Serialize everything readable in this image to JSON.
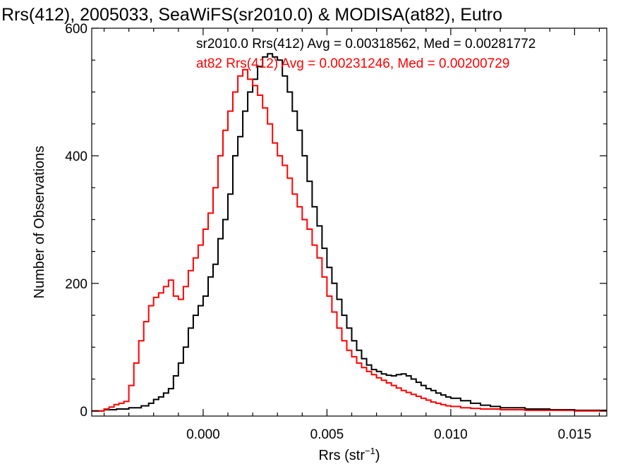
{
  "chart_data": {
    "type": "histogram-step",
    "title": "Rrs(412), 2005033, SeaWiFS(sr2010.0) & MODISA(at82), Eutro",
    "xlabel": {
      "base": "Rrs (str",
      "sup": "−1",
      "end": ")"
    },
    "ylabel": "Number of Observations",
    "xlim": [
      -0.0045,
      0.0163
    ],
    "ylim": [
      -8,
      600
    ],
    "xticks": [
      0.0,
      0.005,
      0.01,
      0.015
    ],
    "xtick_labels": [
      "0.000",
      "0.005",
      "0.010",
      "0.015"
    ],
    "yticks": [
      0,
      200,
      400,
      600
    ],
    "ytick_labels": [
      "0",
      "200",
      "400",
      "600"
    ],
    "grid": false,
    "legend_position": "top",
    "series": [
      {
        "name": "sr2010.0",
        "color": "#000000",
        "legend_text": "sr2010.0 Rrs(412) Avg = 0.00318562, Med = 0.00281772",
        "points": [
          [
            -0.0045,
            0
          ],
          [
            -0.004,
            2
          ],
          [
            -0.0035,
            3
          ],
          [
            -0.003,
            5
          ],
          [
            -0.0025,
            8
          ],
          [
            -0.0022,
            12
          ],
          [
            -0.002,
            18
          ],
          [
            -0.0018,
            22
          ],
          [
            -0.0016,
            28
          ],
          [
            -0.0014,
            35
          ],
          [
            -0.0012,
            55
          ],
          [
            -0.001,
            75
          ],
          [
            -0.0008,
            100
          ],
          [
            -0.0006,
            130
          ],
          [
            -0.0004,
            150
          ],
          [
            -0.0002,
            165
          ],
          [
            0.0,
            180
          ],
          [
            0.0002,
            210
          ],
          [
            0.0004,
            230
          ],
          [
            0.0006,
            270
          ],
          [
            0.0008,
            300
          ],
          [
            0.001,
            340
          ],
          [
            0.0012,
            400
          ],
          [
            0.0014,
            430
          ],
          [
            0.0016,
            470
          ],
          [
            0.0018,
            500
          ],
          [
            0.002,
            520
          ],
          [
            0.0022,
            540
          ],
          [
            0.0024,
            555
          ],
          [
            0.0026,
            560
          ],
          [
            0.0028,
            555
          ],
          [
            0.003,
            550
          ],
          [
            0.0032,
            525
          ],
          [
            0.0034,
            500
          ],
          [
            0.0036,
            470
          ],
          [
            0.0038,
            440
          ],
          [
            0.004,
            400
          ],
          [
            0.0042,
            360
          ],
          [
            0.0044,
            320
          ],
          [
            0.0046,
            290
          ],
          [
            0.0048,
            255
          ],
          [
            0.005,
            225
          ],
          [
            0.0052,
            200
          ],
          [
            0.0054,
            175
          ],
          [
            0.0056,
            150
          ],
          [
            0.0058,
            130
          ],
          [
            0.006,
            110
          ],
          [
            0.0062,
            95
          ],
          [
            0.0064,
            82
          ],
          [
            0.0066,
            72
          ],
          [
            0.0068,
            65
          ],
          [
            0.007,
            62
          ],
          [
            0.0072,
            58
          ],
          [
            0.0074,
            56
          ],
          [
            0.0076,
            55
          ],
          [
            0.0078,
            57
          ],
          [
            0.008,
            58
          ],
          [
            0.0082,
            55
          ],
          [
            0.0084,
            50
          ],
          [
            0.0086,
            45
          ],
          [
            0.0088,
            40
          ],
          [
            0.009,
            35
          ],
          [
            0.0092,
            32
          ],
          [
            0.0094,
            28
          ],
          [
            0.0096,
            25
          ],
          [
            0.0098,
            22
          ],
          [
            0.01,
            20
          ],
          [
            0.0104,
            16
          ],
          [
            0.0108,
            12
          ],
          [
            0.0112,
            9
          ],
          [
            0.0116,
            7
          ],
          [
            0.012,
            5
          ],
          [
            0.013,
            3
          ],
          [
            0.014,
            2
          ],
          [
            0.015,
            1
          ],
          [
            0.016,
            1
          ]
        ]
      },
      {
        "name": "at82",
        "color": "#ff0000",
        "legend_text": "at82 Rrs(412) Avg = 0.00231246, Med = 0.00200729",
        "points": [
          [
            -0.0045,
            0
          ],
          [
            -0.004,
            3
          ],
          [
            -0.0038,
            6
          ],
          [
            -0.0036,
            10
          ],
          [
            -0.0034,
            12
          ],
          [
            -0.0032,
            15
          ],
          [
            -0.003,
            40
          ],
          [
            -0.0028,
            75
          ],
          [
            -0.0026,
            110
          ],
          [
            -0.0024,
            140
          ],
          [
            -0.0022,
            165
          ],
          [
            -0.002,
            178
          ],
          [
            -0.0018,
            185
          ],
          [
            -0.0016,
            195
          ],
          [
            -0.0014,
            205
          ],
          [
            -0.0012,
            180
          ],
          [
            -0.001,
            175
          ],
          [
            -0.0008,
            195
          ],
          [
            -0.0006,
            220
          ],
          [
            -0.0004,
            240
          ],
          [
            -0.0002,
            260
          ],
          [
            0.0,
            285
          ],
          [
            0.0002,
            310
          ],
          [
            0.0004,
            350
          ],
          [
            0.0006,
            400
          ],
          [
            0.0008,
            440
          ],
          [
            0.001,
            470
          ],
          [
            0.0012,
            500
          ],
          [
            0.0014,
            525
          ],
          [
            0.0016,
            535
          ],
          [
            0.0018,
            520
          ],
          [
            0.002,
            510
          ],
          [
            0.0022,
            495
          ],
          [
            0.0024,
            475
          ],
          [
            0.0026,
            450
          ],
          [
            0.0028,
            420
          ],
          [
            0.003,
            400
          ],
          [
            0.0032,
            385
          ],
          [
            0.0034,
            365
          ],
          [
            0.0036,
            340
          ],
          [
            0.0038,
            320
          ],
          [
            0.004,
            300
          ],
          [
            0.0042,
            285
          ],
          [
            0.0044,
            260
          ],
          [
            0.0046,
            240
          ],
          [
            0.0048,
            210
          ],
          [
            0.005,
            180
          ],
          [
            0.0052,
            155
          ],
          [
            0.0054,
            130
          ],
          [
            0.0056,
            110
          ],
          [
            0.0058,
            95
          ],
          [
            0.006,
            85
          ],
          [
            0.0062,
            75
          ],
          [
            0.0064,
            68
          ],
          [
            0.0066,
            62
          ],
          [
            0.0068,
            57
          ],
          [
            0.007,
            52
          ],
          [
            0.0072,
            48
          ],
          [
            0.0074,
            44
          ],
          [
            0.0076,
            40
          ],
          [
            0.0078,
            36
          ],
          [
            0.008,
            32
          ],
          [
            0.0082,
            29
          ],
          [
            0.0084,
            26
          ],
          [
            0.0086,
            23
          ],
          [
            0.0088,
            20
          ],
          [
            0.009,
            17
          ],
          [
            0.0092,
            14
          ],
          [
            0.0094,
            12
          ],
          [
            0.0096,
            10
          ],
          [
            0.0098,
            8
          ],
          [
            0.01,
            7
          ],
          [
            0.0104,
            5
          ],
          [
            0.0108,
            4
          ],
          [
            0.0112,
            3
          ],
          [
            0.012,
            2
          ],
          [
            0.013,
            1
          ],
          [
            0.015,
            0
          ]
        ]
      }
    ]
  }
}
